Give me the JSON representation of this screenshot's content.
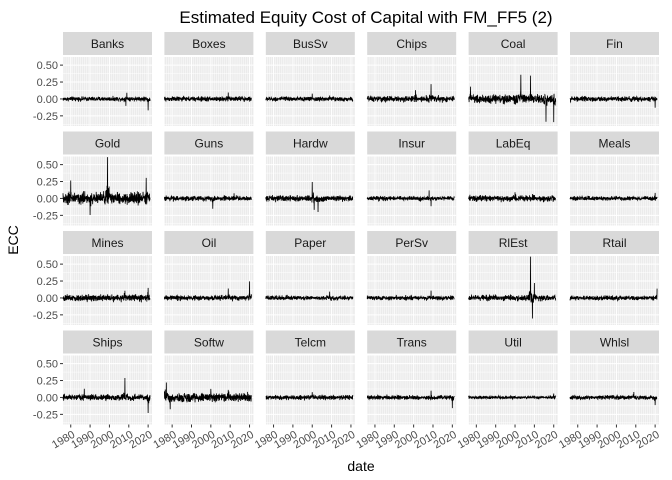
{
  "chart_data": {
    "type": "line",
    "title": "Estimated Equity Cost of Capital with FM_FF5 (2)",
    "xlabel": "date",
    "ylabel": "ECC",
    "x_ticks": [
      "1980",
      "1990",
      "2000",
      "2010",
      "2020"
    ],
    "x_tick_values": [
      1980,
      1990,
      2000,
      2010,
      2020
    ],
    "xlim": [
      1976,
      2022
    ],
    "y_ticks": [
      "-0.25",
      "0.00",
      "0.25",
      "0.50"
    ],
    "y_tick_values": [
      -0.25,
      0,
      0.25,
      0.5
    ],
    "ylim": [
      -0.4,
      0.62
    ],
    "grid": true,
    "layout": "facet_wrap",
    "colors": {
      "panel_bg": "#ebebeb",
      "strip_bg": "#d9d9d9",
      "grid": "#ffffff",
      "line": "#000000"
    },
    "panels": [
      {
        "name": "Banks",
        "x_start": 1976,
        "x_end": 2021,
        "noise": 0.022,
        "spikes": [
          [
            2009,
            0.1
          ],
          [
            2008.5,
            -0.08
          ],
          [
            2020,
            -0.15
          ]
        ]
      },
      {
        "name": "Boxes",
        "x_start": 1976,
        "x_end": 2021,
        "noise": 0.025,
        "spikes": [
          [
            2009,
            0.08
          ]
        ]
      },
      {
        "name": "BusSv",
        "x_start": 1976,
        "x_end": 2021,
        "noise": 0.022,
        "spikes": [
          [
            2000,
            0.09
          ],
          [
            2009,
            0.07
          ]
        ]
      },
      {
        "name": "Chips",
        "x_start": 1976,
        "x_end": 2021,
        "noise": 0.03,
        "spikes": [
          [
            2001,
            0.12
          ],
          [
            2009,
            0.22
          ]
        ]
      },
      {
        "name": "Coal",
        "x_start": 1976,
        "x_end": 2021,
        "noise": 0.045,
        "spikes": [
          [
            1977,
            0.2
          ],
          [
            2003,
            0.38
          ],
          [
            2008,
            0.35
          ],
          [
            2016,
            -0.3
          ],
          [
            2020,
            -0.35
          ]
        ]
      },
      {
        "name": "Fin",
        "x_start": 1976,
        "x_end": 2021,
        "noise": 0.025,
        "spikes": [
          [
            2009,
            0.07
          ],
          [
            2020,
            -0.12
          ]
        ]
      },
      {
        "name": "Gold",
        "x_start": 1976,
        "x_end": 2021,
        "noise": 0.06,
        "spikes": [
          [
            1980,
            0.22
          ],
          [
            1999,
            0.62
          ],
          [
            1990,
            -0.2
          ],
          [
            2019,
            0.25
          ]
        ]
      },
      {
        "name": "Guns",
        "x_start": 1976,
        "x_end": 2021,
        "noise": 0.025,
        "spikes": [
          [
            2001,
            -0.15
          ],
          [
            2012,
            0.1
          ]
        ]
      },
      {
        "name": "Hardw",
        "x_start": 1976,
        "x_end": 2021,
        "noise": 0.03,
        "spikes": [
          [
            2000,
            0.25
          ],
          [
            2001,
            -0.22
          ],
          [
            2003,
            -0.2
          ]
        ]
      },
      {
        "name": "Insur",
        "x_start": 1976,
        "x_end": 2021,
        "noise": 0.022,
        "spikes": [
          [
            2008,
            0.12
          ],
          [
            2009,
            -0.1
          ]
        ]
      },
      {
        "name": "LabEq",
        "x_start": 1976,
        "x_end": 2021,
        "noise": 0.03,
        "spikes": [
          [
            2000,
            0.12
          ],
          [
            2009,
            0.1
          ]
        ]
      },
      {
        "name": "Meals",
        "x_start": 1976,
        "x_end": 2021,
        "noise": 0.022,
        "spikes": [
          [
            2020,
            0.08
          ]
        ]
      },
      {
        "name": "Mines",
        "x_start": 1976,
        "x_end": 2021,
        "noise": 0.035,
        "spikes": [
          [
            2008,
            0.12
          ],
          [
            2020,
            0.15
          ]
        ]
      },
      {
        "name": "Oil",
        "x_start": 1976,
        "x_end": 2021,
        "noise": 0.025,
        "spikes": [
          [
            2009,
            0.12
          ],
          [
            2020,
            0.22
          ]
        ]
      },
      {
        "name": "Paper",
        "x_start": 1976,
        "x_end": 2021,
        "noise": 0.022,
        "spikes": [
          [
            2009,
            0.1
          ]
        ]
      },
      {
        "name": "PerSv",
        "x_start": 1976,
        "x_end": 2021,
        "noise": 0.022,
        "spikes": [
          [
            2009,
            0.08
          ]
        ]
      },
      {
        "name": "RlEst",
        "x_start": 1976,
        "x_end": 2021,
        "noise": 0.03,
        "spikes": [
          [
            2008,
            0.62
          ],
          [
            2009,
            -0.3
          ],
          [
            2010,
            0.2
          ]
        ]
      },
      {
        "name": "Rtail",
        "x_start": 1976,
        "x_end": 2021,
        "noise": 0.022,
        "spikes": [
          [
            2021,
            0.12
          ]
        ]
      },
      {
        "name": "Ships",
        "x_start": 1976,
        "x_end": 2021,
        "noise": 0.03,
        "spikes": [
          [
            1987,
            0.15
          ],
          [
            2008,
            0.3
          ],
          [
            2020,
            -0.25
          ]
        ]
      },
      {
        "name": "Softw",
        "x_start": 1976,
        "x_end": 2021,
        "noise": 0.045,
        "spikes": [
          [
            1977,
            0.25
          ],
          [
            1979,
            -0.2
          ],
          [
            2000,
            0.15
          ],
          [
            2009,
            0.12
          ]
        ]
      },
      {
        "name": "Telcm",
        "x_start": 1976,
        "x_end": 2021,
        "noise": 0.022,
        "spikes": [
          [
            2000,
            0.08
          ]
        ]
      },
      {
        "name": "Trans",
        "x_start": 1976,
        "x_end": 2021,
        "noise": 0.022,
        "spikes": [
          [
            2009,
            0.1
          ],
          [
            2020,
            -0.15
          ]
        ]
      },
      {
        "name": "Util",
        "x_start": 1976,
        "x_end": 2021,
        "noise": 0.015,
        "spikes": [
          [
            2020,
            0.08
          ]
        ]
      },
      {
        "name": "Whlsl",
        "x_start": 1976,
        "x_end": 2021,
        "noise": 0.022,
        "spikes": [
          [
            2009,
            0.1
          ],
          [
            2020,
            -0.12
          ]
        ]
      }
    ]
  }
}
